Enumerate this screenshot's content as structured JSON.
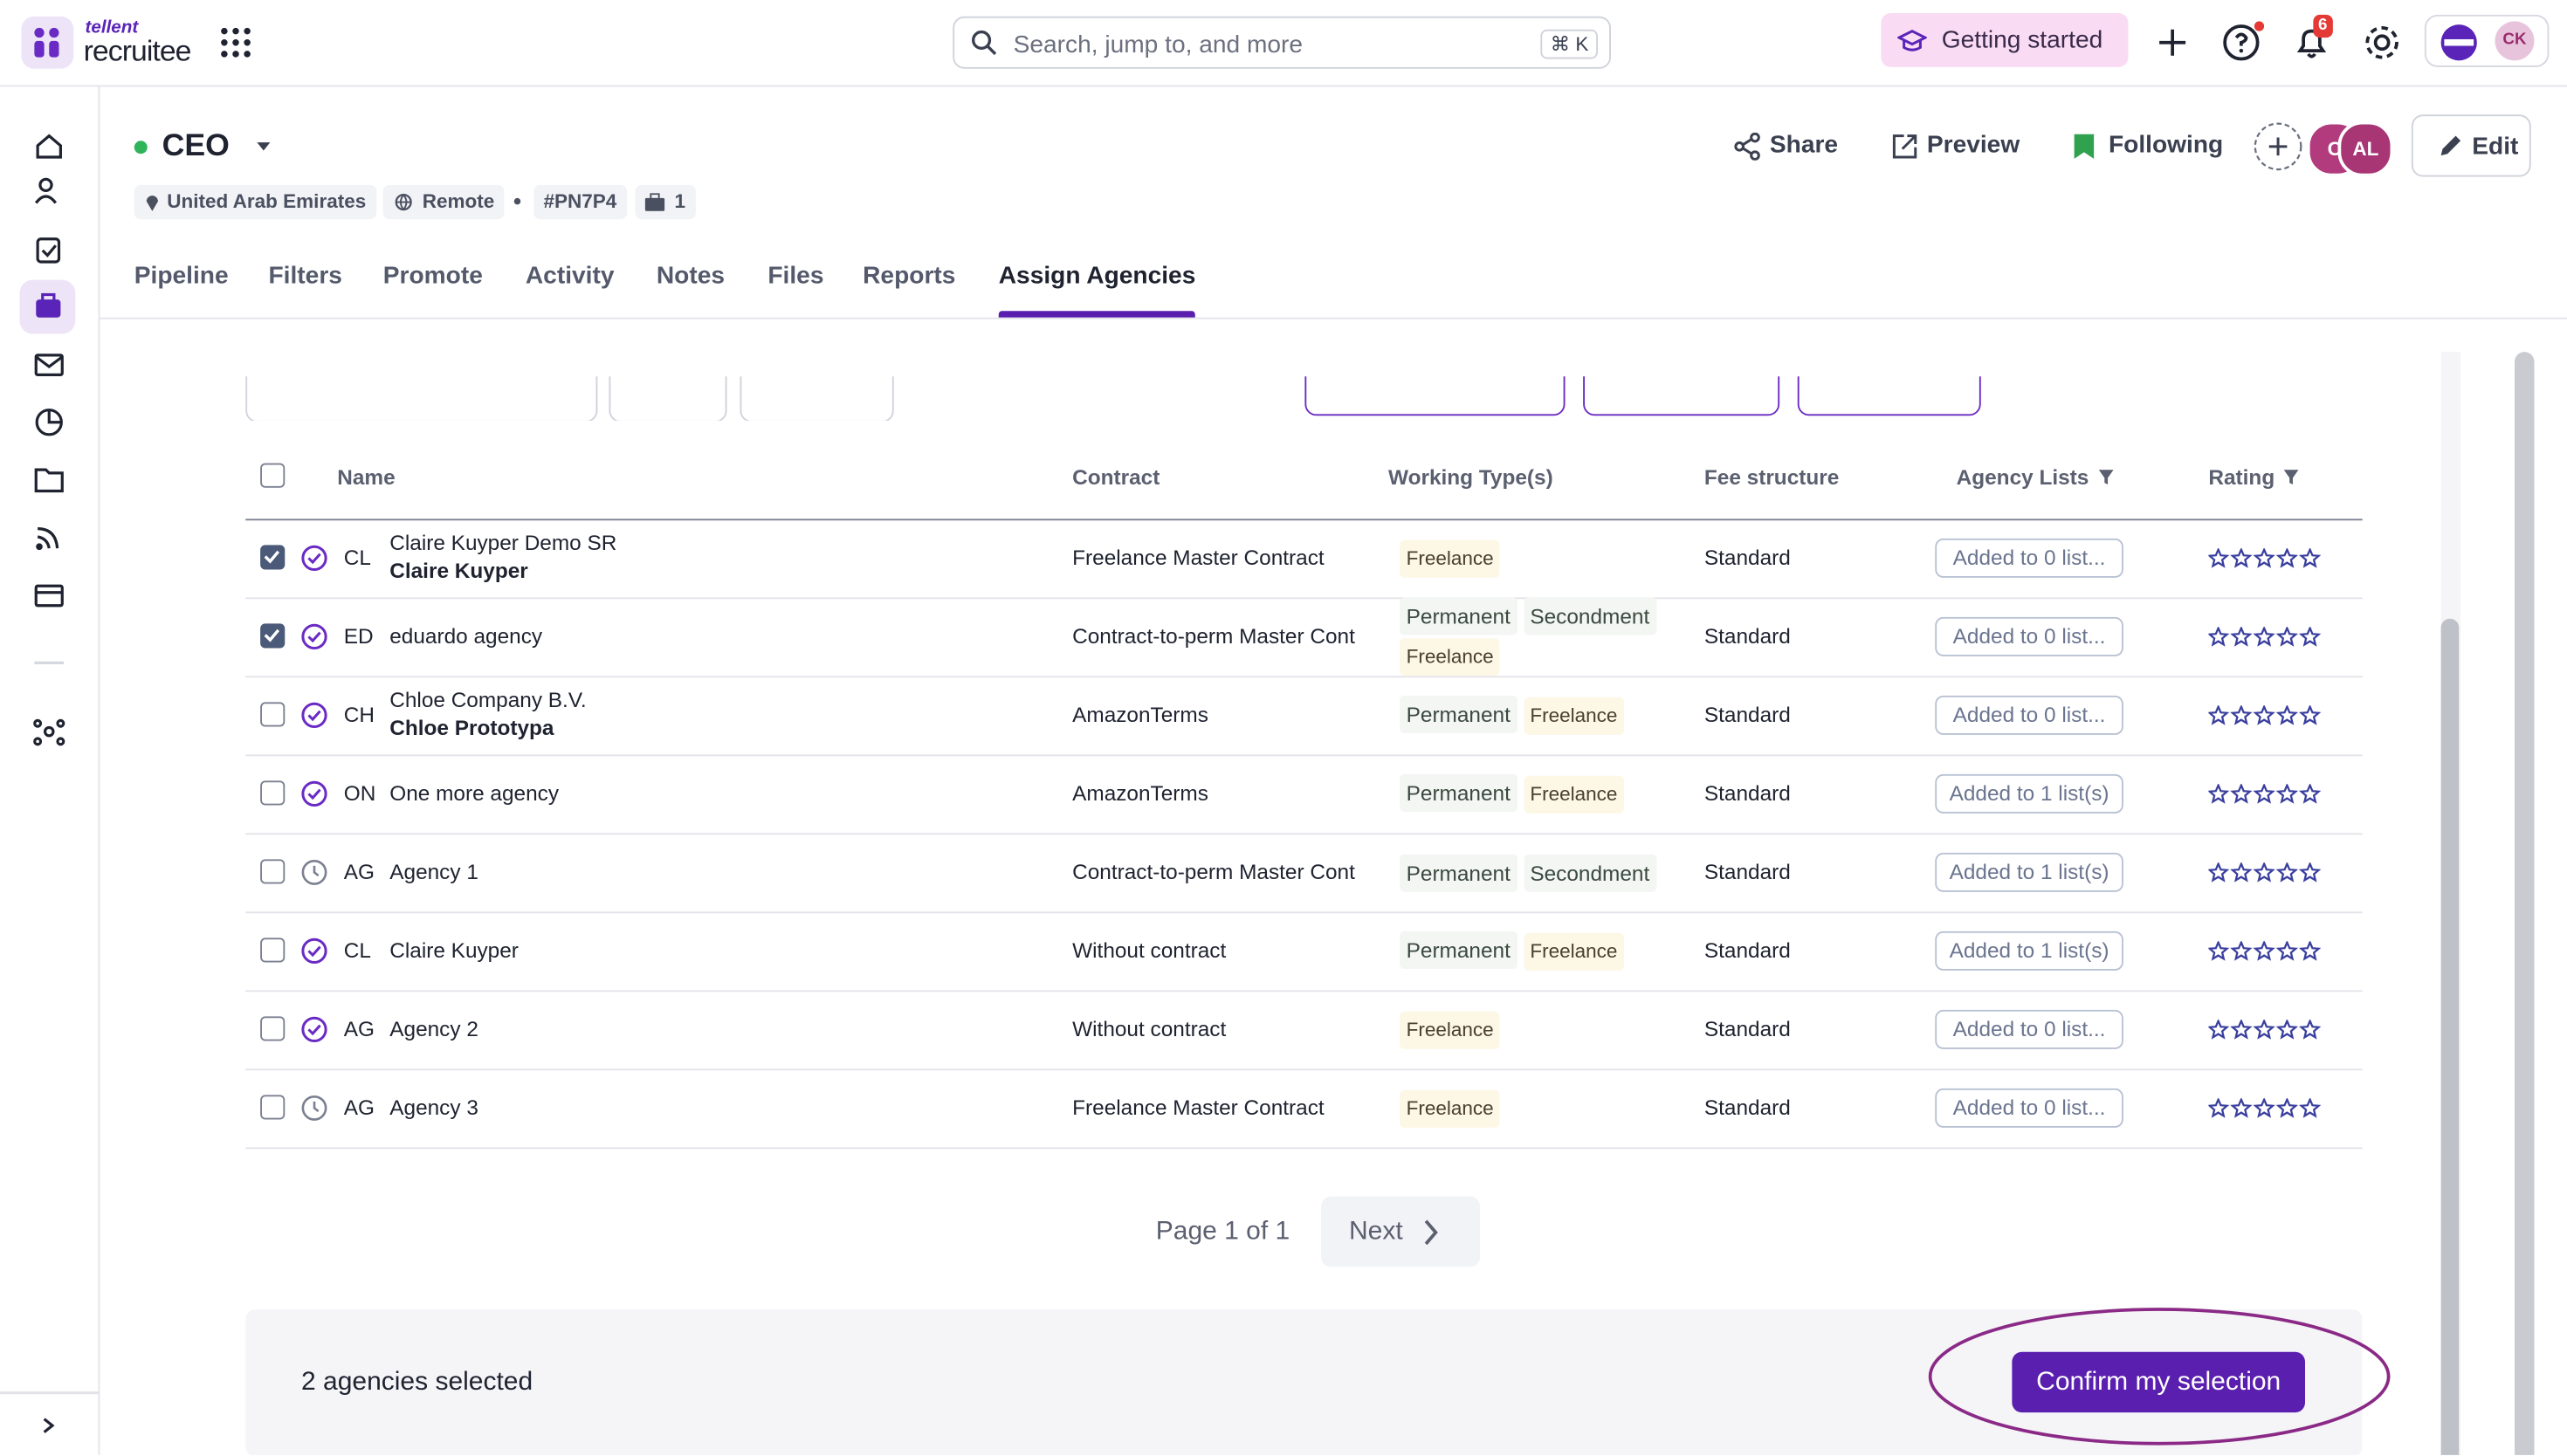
{
  "topbar": {
    "brand_top": "tellent",
    "brand": "recruitee",
    "search_placeholder": "Search, jump to, and more",
    "search_shortcut": "⌘ K",
    "getting_started": "Getting started",
    "notifications": 6,
    "user_initials": "CK"
  },
  "job": {
    "title": "CEO",
    "location": "United Arab Emirates",
    "workplace": "Remote",
    "code": "#PN7P4",
    "openings": 1,
    "actions": [
      "Share",
      "Preview",
      "Following",
      "Edit"
    ],
    "followers": [
      "C",
      "AL"
    ]
  },
  "tabs": {
    "items": [
      "Pipeline",
      "Filters",
      "Promote",
      "Activity",
      "Notes",
      "Files",
      "Reports",
      "Assign Agencies"
    ],
    "active": 7
  },
  "table": {
    "headers": [
      "Name",
      "Contract",
      "Working Type(s)",
      "Fee structure",
      "Agency Lists",
      "Rating"
    ],
    "rows": [
      {
        "checked": true,
        "status": "verified",
        "initials": "CL",
        "name": "Claire Kuyper Demo SR",
        "contact": "Claire Kuyper",
        "contract": "Freelance Master Contract",
        "working_types": [
          "Freelance"
        ],
        "fee": "Standard",
        "agency_lists": "Added to 0 list..."
      },
      {
        "checked": true,
        "status": "verified",
        "initials": "ED",
        "name": "eduardo agency",
        "contract": "Contract-to-perm Master Cont",
        "working_types": [
          "Permanent",
          "Secondment",
          "Freelance"
        ],
        "fee": "Standard",
        "agency_lists": "Added to 0 list..."
      },
      {
        "checked": false,
        "status": "verified",
        "initials": "CH",
        "name": "Chloe Company B.V.",
        "contact": "Chloe Prototypa",
        "contract": "AmazonTerms",
        "working_types": [
          "Permanent",
          "Freelance"
        ],
        "fee": "Standard",
        "agency_lists": "Added to 0 list..."
      },
      {
        "checked": false,
        "status": "verified",
        "initials": "ON",
        "name": "One more agency",
        "contract": "AmazonTerms",
        "working_types": [
          "Permanent",
          "Freelance"
        ],
        "fee": "Standard",
        "agency_lists": "Added to 1 list(s)"
      },
      {
        "checked": false,
        "status": "pending",
        "initials": "AG",
        "name": "Agency 1",
        "contract": "Contract-to-perm Master Cont",
        "working_types": [
          "Permanent",
          "Secondment"
        ],
        "fee": "Standard",
        "agency_lists": "Added to 1 list(s)"
      },
      {
        "checked": false,
        "status": "verified",
        "initials": "CL",
        "name": "Claire Kuyper",
        "contract": "Without contract",
        "working_types": [
          "Permanent",
          "Freelance"
        ],
        "fee": "Standard",
        "agency_lists": "Added to 1 list(s)"
      },
      {
        "checked": false,
        "status": "verified",
        "initials": "AG",
        "name": "Agency 2",
        "contract": "Without contract",
        "working_types": [
          "Freelance"
        ],
        "fee": "Standard",
        "agency_lists": "Added to 0 list..."
      },
      {
        "checked": false,
        "status": "pending",
        "initials": "AG",
        "name": "Agency 3",
        "contract": "Freelance Master Contract",
        "working_types": [
          "Freelance"
        ],
        "fee": "Standard",
        "agency_lists": "Added to 0 list..."
      }
    ]
  },
  "pagination": {
    "label": "Page 1 of 1",
    "next": "Next"
  },
  "footer": {
    "selected": "2 agencies selected",
    "confirm": "Confirm my selection"
  }
}
